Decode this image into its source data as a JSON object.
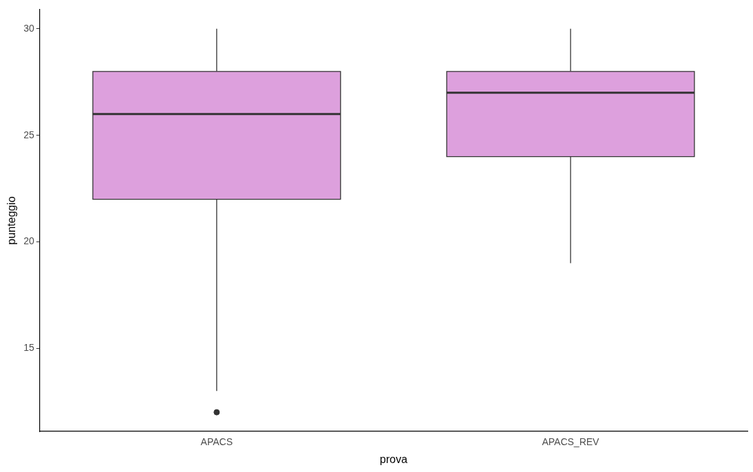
{
  "chart_data": {
    "type": "box",
    "xlabel": "prova",
    "ylabel": "punteggio",
    "categories": [
      "APACS",
      "APACS_REV"
    ],
    "color": "#dda0dd",
    "boxes": [
      {
        "low": 13,
        "q1": 22,
        "median": 26,
        "q3": 28,
        "high": 30,
        "outliers": [
          12
        ]
      },
      {
        "low": 19,
        "q1": 24,
        "median": 27,
        "q3": 28,
        "high": 30
      }
    ],
    "ylim": [
      11.1,
      30.9
    ],
    "yticks": [
      15,
      20,
      25,
      30
    ],
    "grid": false,
    "legend": false
  }
}
